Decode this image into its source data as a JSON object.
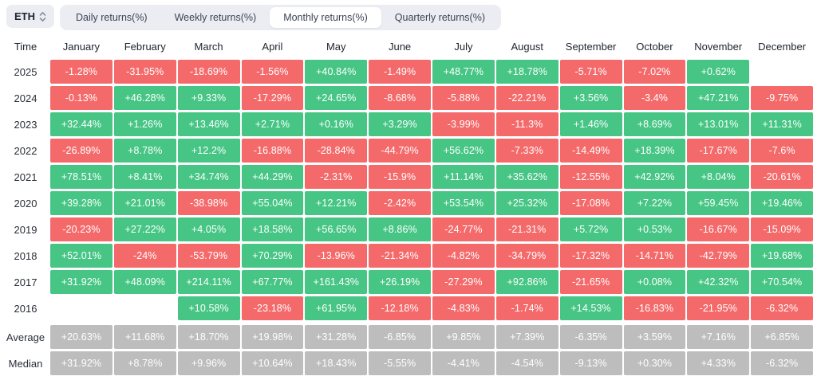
{
  "asset_selector": {
    "label": "ETH",
    "icon": "up-down-caret-icon"
  },
  "tabs": [
    {
      "label": "Daily returns(%)",
      "active": false
    },
    {
      "label": "Weekly returns(%)",
      "active": false
    },
    {
      "label": "Monthly returns(%)",
      "active": true
    },
    {
      "label": "Quarterly returns(%)",
      "active": false
    }
  ],
  "colors": {
    "positive": "#46c585",
    "negative": "#f46a6b",
    "neutral": "#bdbdbd",
    "pill_bg": "#ebedf2",
    "active_tab_bg": "#ffffff",
    "cell_text": "#ffffff",
    "header_text": "#20262f"
  },
  "chart_data": {
    "type": "heatmap",
    "title": "Monthly returns(%)",
    "x_categories": [
      "January",
      "February",
      "March",
      "April",
      "May",
      "June",
      "July",
      "August",
      "September",
      "October",
      "November",
      "December"
    ],
    "y_categories": [
      "2025",
      "2024",
      "2023",
      "2022",
      "2021",
      "2020",
      "2019",
      "2018",
      "2017",
      "2016",
      "Average",
      "Median"
    ],
    "time_header": "Time",
    "legend_position": "none",
    "rows": [
      {
        "label": "2025",
        "style": "signed",
        "gap_before": false,
        "values": [
          "-1.28%",
          "-31.95%",
          "-18.69%",
          "-1.56%",
          "+40.84%",
          "-1.49%",
          "+48.77%",
          "+18.78%",
          "-5.71%",
          "-7.02%",
          "+0.62%",
          null
        ]
      },
      {
        "label": "2024",
        "style": "signed",
        "gap_before": false,
        "values": [
          "-0.13%",
          "+46.28%",
          "+9.33%",
          "-17.29%",
          "+24.65%",
          "-8.68%",
          "-5.88%",
          "-22.21%",
          "+3.56%",
          "-3.4%",
          "+47.21%",
          "-9.75%"
        ]
      },
      {
        "label": "2023",
        "style": "signed",
        "gap_before": false,
        "values": [
          "+32.44%",
          "+1.26%",
          "+13.46%",
          "+2.71%",
          "+0.16%",
          "+3.29%",
          "-3.99%",
          "-11.3%",
          "+1.46%",
          "+8.69%",
          "+13.01%",
          "+11.31%"
        ]
      },
      {
        "label": "2022",
        "style": "signed",
        "gap_before": false,
        "values": [
          "-26.89%",
          "+8.78%",
          "+12.2%",
          "-16.88%",
          "-28.84%",
          "-44.79%",
          "+56.62%",
          "-7.33%",
          "-14.49%",
          "+18.39%",
          "-17.67%",
          "-7.6%"
        ]
      },
      {
        "label": "2021",
        "style": "signed",
        "gap_before": false,
        "values": [
          "+78.51%",
          "+8.41%",
          "+34.74%",
          "+44.29%",
          "-2.31%",
          "-15.9%",
          "+11.14%",
          "+35.62%",
          "-12.55%",
          "+42.92%",
          "+8.04%",
          "-20.61%"
        ]
      },
      {
        "label": "2020",
        "style": "signed",
        "gap_before": false,
        "values": [
          "+39.28%",
          "+21.01%",
          "-38.98%",
          "+55.04%",
          "+12.21%",
          "-2.42%",
          "+53.54%",
          "+25.32%",
          "-17.08%",
          "+7.22%",
          "+59.45%",
          "+19.46%"
        ]
      },
      {
        "label": "2019",
        "style": "signed",
        "gap_before": false,
        "values": [
          "-20.23%",
          "+27.22%",
          "+4.05%",
          "+18.58%",
          "+56.65%",
          "+8.86%",
          "-24.77%",
          "-21.31%",
          "+5.72%",
          "+0.53%",
          "-16.67%",
          "-15.09%"
        ]
      },
      {
        "label": "2018",
        "style": "signed",
        "gap_before": false,
        "values": [
          "+52.01%",
          "-24%",
          "-53.79%",
          "+70.29%",
          "-13.96%",
          "-21.34%",
          "-4.82%",
          "-34.79%",
          "-17.32%",
          "-14.71%",
          "-42.79%",
          "+19.68%"
        ]
      },
      {
        "label": "2017",
        "style": "signed",
        "gap_before": false,
        "values": [
          "+31.92%",
          "+48.09%",
          "+214.11%",
          "+67.77%",
          "+161.43%",
          "+26.19%",
          "-27.29%",
          "+92.86%",
          "-21.65%",
          "+0.08%",
          "+42.32%",
          "+70.54%"
        ]
      },
      {
        "label": "2016",
        "style": "signed",
        "gap_before": false,
        "values": [
          null,
          null,
          "+10.58%",
          "-23.18%",
          "+61.95%",
          "-12.18%",
          "-4.83%",
          "-1.74%",
          "+14.53%",
          "-16.83%",
          "-21.95%",
          "-6.32%"
        ]
      },
      {
        "label": "Average",
        "style": "neutral",
        "gap_before": true,
        "values": [
          "+20.63%",
          "+11.68%",
          "+18.70%",
          "+19.98%",
          "+31.28%",
          "-6.85%",
          "+9.85%",
          "+7.39%",
          "-6.35%",
          "+3.59%",
          "+7.16%",
          "+6.85%"
        ]
      },
      {
        "label": "Median",
        "style": "neutral",
        "gap_before": false,
        "values": [
          "+31.92%",
          "+8.78%",
          "+9.96%",
          "+10.64%",
          "+18.43%",
          "-5.55%",
          "-4.41%",
          "-4.54%",
          "-9.13%",
          "+0.30%",
          "+4.33%",
          "-6.32%"
        ]
      }
    ]
  }
}
